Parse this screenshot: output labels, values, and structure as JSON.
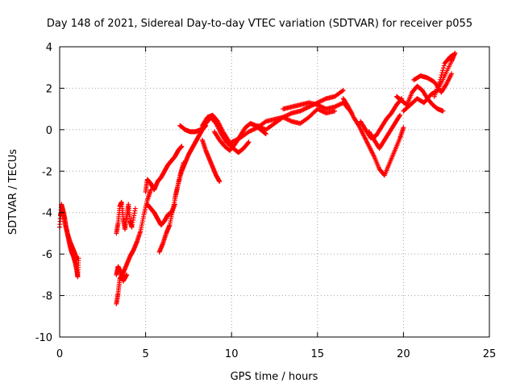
{
  "chart_data": {
    "type": "scatter",
    "title": "Day 148 of 2021, Sidereal Day-to-day VTEC variation (SDTVAR) for receiver p055",
    "xlabel": "GPS time / hours",
    "ylabel": "SDTVAR / TECUs",
    "xlim": [
      0,
      25
    ],
    "ylim": [
      -10,
      4
    ],
    "xticks": [
      0,
      5,
      10,
      15,
      20,
      25
    ],
    "yticks": [
      -10,
      -8,
      -6,
      -4,
      -2,
      0,
      2,
      4
    ],
    "grid": true,
    "marker": "plus",
    "color": "#ff0000",
    "series": [
      {
        "x": [
          0.0,
          0.1,
          0.2,
          0.3,
          0.4,
          0.5,
          0.6,
          0.7,
          0.8,
          0.9,
          1.0,
          1.05,
          1.1
        ],
        "y": [
          -4.7,
          -3.6,
          -3.9,
          -4.3,
          -4.8,
          -5.2,
          -5.6,
          -5.9,
          -6.1,
          -6.4,
          -6.8,
          -7.1,
          -6.2
        ]
      },
      {
        "x": [
          0.05,
          0.15,
          0.3,
          0.45,
          0.6,
          0.75,
          0.9,
          1.0
        ],
        "y": [
          -4.1,
          -3.9,
          -4.5,
          -5.0,
          -5.4,
          -5.7,
          -6.0,
          -6.3
        ]
      },
      {
        "x": [
          3.3,
          3.4,
          3.5,
          3.6,
          3.7,
          3.8,
          3.9,
          4.0,
          4.1,
          4.2,
          4.4
        ],
        "y": [
          -5.0,
          -4.5,
          -3.7,
          -3.5,
          -4.3,
          -4.8,
          -4.2,
          -3.6,
          -4.4,
          -4.7,
          -3.8
        ]
      },
      {
        "x": [
          3.3,
          3.4,
          3.5,
          3.7,
          3.9,
          4.1,
          4.3,
          4.5,
          4.7,
          4.9,
          5.1,
          5.3
        ],
        "y": [
          -8.4,
          -7.9,
          -7.2,
          -6.9,
          -6.5,
          -6.1,
          -5.8,
          -5.4,
          -4.9,
          -4.1,
          -3.4,
          -2.9
        ]
      },
      {
        "x": [
          3.3,
          3.4,
          3.5,
          3.7,
          3.9
        ],
        "y": [
          -7.0,
          -6.6,
          -6.8,
          -7.3,
          -7.0
        ]
      },
      {
        "x": [
          5.0,
          5.1,
          5.3,
          5.5,
          5.7,
          5.9,
          6.1,
          6.3,
          6.5,
          6.7,
          6.9,
          7.1
        ],
        "y": [
          -3.0,
          -2.4,
          -2.6,
          -2.9,
          -2.5,
          -2.3,
          -2.0,
          -1.7,
          -1.5,
          -1.3,
          -1.0,
          -0.8
        ]
      },
      {
        "x": [
          5.1,
          5.3,
          5.5,
          5.7,
          5.9,
          6.1,
          6.3,
          6.5,
          6.7
        ],
        "y": [
          -3.6,
          -3.8,
          -4.0,
          -4.3,
          -4.6,
          -4.4,
          -4.1,
          -4.0,
          -3.6
        ]
      },
      {
        "x": [
          5.8,
          6.0,
          6.2,
          6.4,
          6.6,
          6.8,
          7.0,
          7.2
        ],
        "y": [
          -5.9,
          -5.5,
          -5.0,
          -4.6,
          -3.8,
          -3.0,
          -2.2,
          -1.6
        ]
      },
      {
        "x": [
          6.7,
          6.9,
          7.1,
          7.3,
          7.5,
          7.7,
          7.9,
          8.1,
          8.3,
          8.5
        ],
        "y": [
          -3.3,
          -2.6,
          -2.0,
          -1.6,
          -1.2,
          -0.9,
          -0.6,
          -0.3,
          0.0,
          0.2
        ]
      },
      {
        "x": [
          7.0,
          7.3,
          7.6,
          7.9,
          8.2,
          8.5,
          8.8,
          9.1,
          9.4,
          9.7,
          10.0
        ],
        "y": [
          0.2,
          0.0,
          -0.1,
          -0.1,
          0.0,
          0.3,
          0.6,
          0.3,
          -0.2,
          -0.6,
          -0.8
        ]
      },
      {
        "x": [
          8.3,
          8.5,
          8.7,
          8.9,
          9.1,
          9.3
        ],
        "y": [
          -0.5,
          -1.0,
          -1.4,
          -1.8,
          -2.2,
          -2.5
        ]
      },
      {
        "x": [
          8.3,
          8.6,
          8.9,
          9.2,
          9.5,
          9.8,
          10.1,
          10.4,
          10.7,
          11.0
        ],
        "y": [
          0.2,
          0.6,
          0.7,
          0.4,
          -0.1,
          -0.5,
          -0.9,
          -1.1,
          -0.9,
          -0.6
        ]
      },
      {
        "x": [
          9.0,
          9.3,
          9.6,
          9.9,
          10.2,
          10.5,
          10.8,
          11.1,
          11.4,
          11.7,
          12.0
        ],
        "y": [
          -0.1,
          -0.5,
          -0.8,
          -1.0,
          -0.7,
          -0.3,
          0.1,
          0.3,
          0.2,
          0.0,
          -0.2
        ]
      },
      {
        "x": [
          10.0,
          10.5,
          11.0,
          11.5,
          12.0,
          12.5,
          13.0,
          13.5,
          14.0,
          14.5,
          15.0,
          15.5,
          16.0,
          16.5
        ],
        "y": [
          -0.6,
          -0.4,
          -0.1,
          0.1,
          0.4,
          0.5,
          0.6,
          0.8,
          0.9,
          1.1,
          1.3,
          1.5,
          1.6,
          1.9
        ]
      },
      {
        "x": [
          11.5,
          12.0,
          12.5,
          13.0,
          13.5,
          14.0,
          14.5,
          15.0,
          15.5,
          16.0
        ],
        "y": [
          0.2,
          0.0,
          0.3,
          0.6,
          0.4,
          0.3,
          0.6,
          1.0,
          0.8,
          0.9
        ]
      },
      {
        "x": [
          13.0,
          13.5,
          14.0,
          14.5,
          15.0,
          15.5,
          16.0,
          16.5,
          17.0
        ],
        "y": [
          1.0,
          1.1,
          1.2,
          1.3,
          1.2,
          1.0,
          1.1,
          1.3,
          0.8
        ]
      },
      {
        "x": [
          16.5,
          16.8,
          17.1,
          17.4,
          17.7,
          18.0,
          18.3,
          18.6,
          18.9,
          19.2,
          19.5,
          19.8,
          20.0
        ],
        "y": [
          1.5,
          1.1,
          0.6,
          0.2,
          -0.3,
          -0.8,
          -1.3,
          -1.9,
          -2.2,
          -1.6,
          -1.0,
          -0.4,
          0.1
        ]
      },
      {
        "x": [
          17.5,
          17.8,
          18.1,
          18.4,
          18.7,
          19.0,
          19.3,
          19.6,
          19.9
        ],
        "y": [
          0.4,
          0.0,
          -0.4,
          -0.3,
          0.1,
          0.5,
          0.8,
          1.2,
          1.5
        ]
      },
      {
        "x": [
          18.0,
          18.3,
          18.6,
          18.9,
          19.2,
          19.5,
          19.8
        ],
        "y": [
          -0.1,
          -0.5,
          -0.9,
          -0.5,
          -0.1,
          0.3,
          0.7
        ]
      },
      {
        "x": [
          19.6,
          19.9,
          20.2,
          20.5,
          20.8,
          21.1,
          21.4,
          21.7,
          22.0,
          22.3
        ],
        "y": [
          1.6,
          1.4,
          1.2,
          1.8,
          2.1,
          1.9,
          1.5,
          1.2,
          1.0,
          0.9
        ]
      },
      {
        "x": [
          20.0,
          20.4,
          20.8,
          21.2,
          21.6,
          22.0,
          22.4,
          22.8,
          23.0
        ],
        "y": [
          0.9,
          1.2,
          1.5,
          1.3,
          1.7,
          1.9,
          2.6,
          3.3,
          3.7
        ]
      },
      {
        "x": [
          20.6,
          21.0,
          21.4,
          21.8,
          22.2,
          22.5,
          22.8
        ],
        "y": [
          2.4,
          2.6,
          2.5,
          2.3,
          1.8,
          2.2,
          2.7
        ]
      },
      {
        "x": [
          21.8,
          22.1,
          22.4,
          22.7,
          22.9
        ],
        "y": [
          1.6,
          2.3,
          3.2,
          3.5,
          3.6
        ]
      }
    ]
  }
}
